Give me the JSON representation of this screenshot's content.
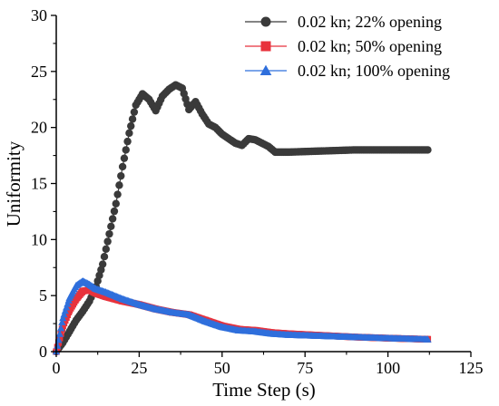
{
  "chart_data": {
    "type": "scatter",
    "title": "",
    "xlabel": "Time Step (s)",
    "ylabel": "Uniformity",
    "xlim": [
      0,
      125
    ],
    "ylim": [
      0,
      30
    ],
    "xticks": [
      "0",
      "25",
      "50",
      "75",
      "100",
      "125"
    ],
    "yticks": [
      "0",
      "5",
      "10",
      "15",
      "20",
      "25",
      "30"
    ],
    "legend_position": "top-right",
    "grid": false,
    "series": [
      {
        "name": "0.02 kn; 22% opening",
        "color": "#3a3a3a",
        "marker": "circle",
        "x": [
          0,
          2,
          4,
          6,
          8,
          10,
          12,
          14,
          16,
          18,
          20,
          22,
          24,
          26,
          28,
          30,
          32,
          34,
          36,
          38,
          40,
          42,
          44,
          46,
          48,
          50,
          52,
          54,
          56,
          58,
          60,
          62,
          64,
          66,
          70,
          80,
          90,
          100,
          112
        ],
        "y": [
          0,
          0.8,
          1.8,
          2.8,
          3.6,
          4.5,
          5.8,
          7.8,
          10.5,
          13.2,
          16.5,
          19.5,
          22.0,
          23.0,
          22.5,
          21.5,
          22.8,
          23.4,
          23.8,
          23.5,
          21.6,
          22.3,
          21.2,
          20.3,
          20.0,
          19.4,
          19.0,
          18.6,
          18.4,
          19.0,
          18.9,
          18.6,
          18.3,
          17.8,
          17.8,
          17.9,
          18.0,
          18.0,
          18.0
        ]
      },
      {
        "name": "0.02 kn; 50% opening",
        "color": "#e8323c",
        "marker": "square",
        "x": [
          0,
          2,
          4,
          6,
          8,
          10,
          12,
          15,
          20,
          25,
          30,
          35,
          40,
          45,
          50,
          55,
          60,
          65,
          70,
          80,
          90,
          100,
          112
        ],
        "y": [
          0,
          2.3,
          3.7,
          4.7,
          5.4,
          5.5,
          5.2,
          4.9,
          4.5,
          4.2,
          3.8,
          3.5,
          3.3,
          2.8,
          2.3,
          2.0,
          1.9,
          1.7,
          1.6,
          1.45,
          1.3,
          1.2,
          1.1
        ]
      },
      {
        "name": "0.02 kn; 100% opening",
        "color": "#2f6fdc",
        "marker": "triangle",
        "x": [
          0,
          2,
          4,
          6,
          8,
          10,
          12,
          15,
          20,
          25,
          30,
          35,
          40,
          45,
          50,
          55,
          60,
          65,
          70,
          80,
          90,
          100,
          112
        ],
        "y": [
          0,
          3.0,
          4.8,
          5.9,
          6.3,
          6.0,
          5.6,
          5.3,
          4.7,
          4.2,
          3.8,
          3.5,
          3.3,
          2.7,
          2.2,
          1.9,
          1.8,
          1.6,
          1.5,
          1.4,
          1.3,
          1.2,
          1.1
        ]
      }
    ]
  }
}
